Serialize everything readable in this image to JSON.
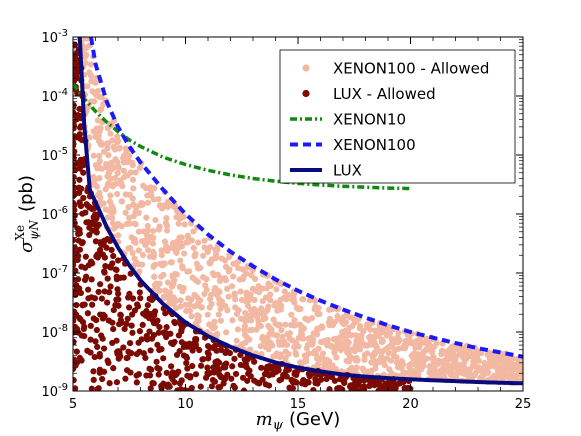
{
  "chart_data": {
    "type": "scatter",
    "xlabel_symbol": "m",
    "xlabel_sub": "ψ",
    "xlabel_unit": "(GeV)",
    "ylabel_symbol": "σ",
    "ylabel_sup": "Xe",
    "ylabel_sub": "ψN",
    "ylabel_unit": "(pb)",
    "xlim": [
      5,
      25
    ],
    "ylim": [
      1e-09,
      0.001
    ],
    "yscale": "log",
    "x_ticks": [
      5,
      10,
      15,
      20,
      25
    ],
    "x_tick_labels": [
      "5",
      "10",
      "15",
      "20",
      "25"
    ],
    "y_ticks": [
      {
        "value": 1e-09,
        "base": "10",
        "exp": "-9"
      },
      {
        "value": 1e-08,
        "base": "10",
        "exp": "-8"
      },
      {
        "value": 1e-07,
        "base": "10",
        "exp": "-7"
      },
      {
        "value": 1e-06,
        "base": "10",
        "exp": "-6"
      },
      {
        "value": 1e-05,
        "base": "10",
        "exp": "-5"
      },
      {
        "value": 0.0001,
        "base": "10",
        "exp": "-4"
      },
      {
        "value": 0.001,
        "base": "10",
        "exp": "-3"
      }
    ],
    "legend_position": "top-right",
    "legend": [
      {
        "label": "XENON100 - Allowed",
        "marker": "dot",
        "color": "#f2b8a2"
      },
      {
        "label": "LUX - Allowed",
        "marker": "dot",
        "color": "#7b0a02"
      },
      {
        "label": "XENON10",
        "marker": "dashdot",
        "color": "#118811"
      },
      {
        "label": "XENON100",
        "marker": "dash",
        "color": "#1a1aff"
      },
      {
        "label": "LUX",
        "marker": "solid",
        "color": "#0b0b80"
      }
    ],
    "series": [
      {
        "name": "XENON10",
        "style": "dashdot",
        "color": "#118811",
        "x": [
          5.0,
          5.5,
          6.0,
          6.5,
          7.0,
          7.5,
          8.0,
          9.0,
          10.0,
          11.0,
          12.0,
          13.0,
          14.0,
          15.0,
          16.0,
          17.0,
          18.0,
          19.0,
          20.0
        ],
        "y": [
          0.00016,
          9e-05,
          5.5e-05,
          3.6e-05,
          2.5e-05,
          1.8e-05,
          1.4e-05,
          9.2e-06,
          6.9e-06,
          5.5e-06,
          4.6e-06,
          4e-06,
          3.6e-06,
          3.3e-06,
          3.1e-06,
          2.95e-06,
          2.85e-06,
          2.75e-06,
          2.7e-06
        ]
      },
      {
        "name": "XENON100",
        "style": "dash",
        "color": "#1a1aff",
        "x": [
          5.8,
          6.0,
          6.5,
          7.0,
          7.5,
          8.0,
          9.0,
          10.0,
          11.0,
          12.0,
          13.0,
          14.0,
          15.0,
          16.0,
          17.0,
          18.0,
          19.0,
          20.0,
          21.0,
          22.0,
          23.0,
          24.0,
          25.0
        ],
        "y": [
          0.001,
          0.00035,
          8e-05,
          3e-05,
          1.4e-05,
          7.5e-06,
          2.6e-06,
          1e-06,
          4.5e-07,
          2.3e-07,
          1.3e-07,
          7.8e-08,
          5e-08,
          3.4e-08,
          2.4e-08,
          1.75e-08,
          1.3e-08,
          1e-08,
          8e-09,
          6.5e-09,
          5.3e-09,
          4.5e-09,
          3.8e-09
        ]
      },
      {
        "name": "LUX",
        "style": "solid",
        "color": "#0b0b80",
        "x": [
          5.3,
          5.5,
          5.75,
          6.0,
          6.5,
          7.0,
          7.5,
          8.0,
          9.0,
          10.0,
          11.0,
          12.0,
          13.0,
          14.0,
          15.0,
          16.0,
          17.0,
          18.0,
          19.0,
          20.0,
          21.0,
          22.0,
          23.0,
          24.0,
          25.0
        ],
        "y": [
          0.001,
          3.2e-05,
          2.5e-06,
          1.6e-06,
          6e-07,
          2.7e-07,
          1.35e-07,
          7.5e-08,
          3e-08,
          1.45e-08,
          8.5e-09,
          5.6e-09,
          4e-09,
          3.05e-09,
          2.5e-09,
          2.15e-09,
          1.9e-09,
          1.75e-09,
          1.65e-09,
          1.58e-09,
          1.52e-09,
          1.47e-09,
          1.42e-09,
          1.38e-09,
          1.35e-09
        ]
      }
    ],
    "scatter_regions": [
      {
        "name": "XENON100 - Allowed",
        "color": "#f2b8a2",
        "count": 1300,
        "xmin": 5.0,
        "xmax": 25.0,
        "lower_bound": "LUX",
        "upper_bound": "XENON100",
        "floor": 1e-09
      },
      {
        "name": "LUX - Allowed",
        "color": "#7b0a02",
        "count": 700,
        "xmin": 5.0,
        "xmax": 20.0,
        "upper_bound": "LUX",
        "floor": 1e-09
      }
    ]
  }
}
